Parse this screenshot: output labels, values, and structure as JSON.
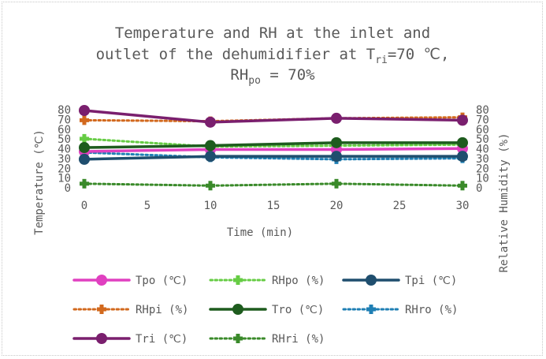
{
  "chart_data": {
    "type": "line",
    "title": {
      "line1": "Temperature and RH at the inlet and",
      "line2_pre": "outlet of the dehumidifier at T",
      "line2_sub": "ri",
      "line2_post": "=70 ℃,",
      "line3_pre": "RH",
      "line3_sub": "po",
      "line3_post": " = 70%"
    },
    "xlabel": "Time (min)",
    "ylabel": "Temperature (℃)",
    "y2label": "Relative Humidity (%)",
    "xlim": [
      0,
      30
    ],
    "ylim": [
      0,
      80
    ],
    "y2lim": [
      0,
      80
    ],
    "xticks": [
      "0",
      "5",
      "10",
      "15",
      "20",
      "25",
      "30"
    ],
    "yticks": [
      "0",
      "10",
      "20",
      "30",
      "40",
      "50",
      "60",
      "70",
      "80"
    ],
    "x": [
      0,
      10,
      20,
      30
    ],
    "legend_position": "bottom",
    "grid": false,
    "series": [
      {
        "name": "Tpo (℃)",
        "axis": "left",
        "values": [
          38,
          40,
          40,
          41
        ],
        "color": "#e040c0",
        "style": "solid",
        "marker": "circle"
      },
      {
        "name": "RHpo (%)",
        "axis": "right",
        "values": [
          51,
          43,
          44,
          45
        ],
        "color": "#66cc44",
        "style": "dotted",
        "marker": "cross"
      },
      {
        "name": "Tpi (℃)",
        "axis": "left",
        "values": [
          30,
          33,
          33,
          33
        ],
        "color": "#1f4e6e",
        "style": "solid",
        "marker": "circle"
      },
      {
        "name": "RHpi (%)",
        "axis": "right",
        "values": [
          70,
          69,
          72,
          73
        ],
        "color": "#d2691e",
        "style": "dotted",
        "marker": "cross"
      },
      {
        "name": "Tro (℃)",
        "axis": "left",
        "values": [
          42,
          44,
          47,
          47
        ],
        "color": "#1e5c1e",
        "style": "solid",
        "marker": "circle"
      },
      {
        "name": "RHro (%)",
        "axis": "right",
        "values": [
          37,
          32,
          30,
          31
        ],
        "color": "#1f7fb4",
        "style": "dotted",
        "marker": "cross"
      },
      {
        "name": "Tri (℃)",
        "axis": "left",
        "values": [
          80,
          68,
          72,
          70
        ],
        "color": "#7a1f6e",
        "style": "solid",
        "marker": "circle"
      },
      {
        "name": "RHri (%)",
        "axis": "right",
        "values": [
          5,
          3,
          5,
          3
        ],
        "color": "#3a8a2a",
        "style": "dotted",
        "marker": "cross"
      }
    ]
  }
}
